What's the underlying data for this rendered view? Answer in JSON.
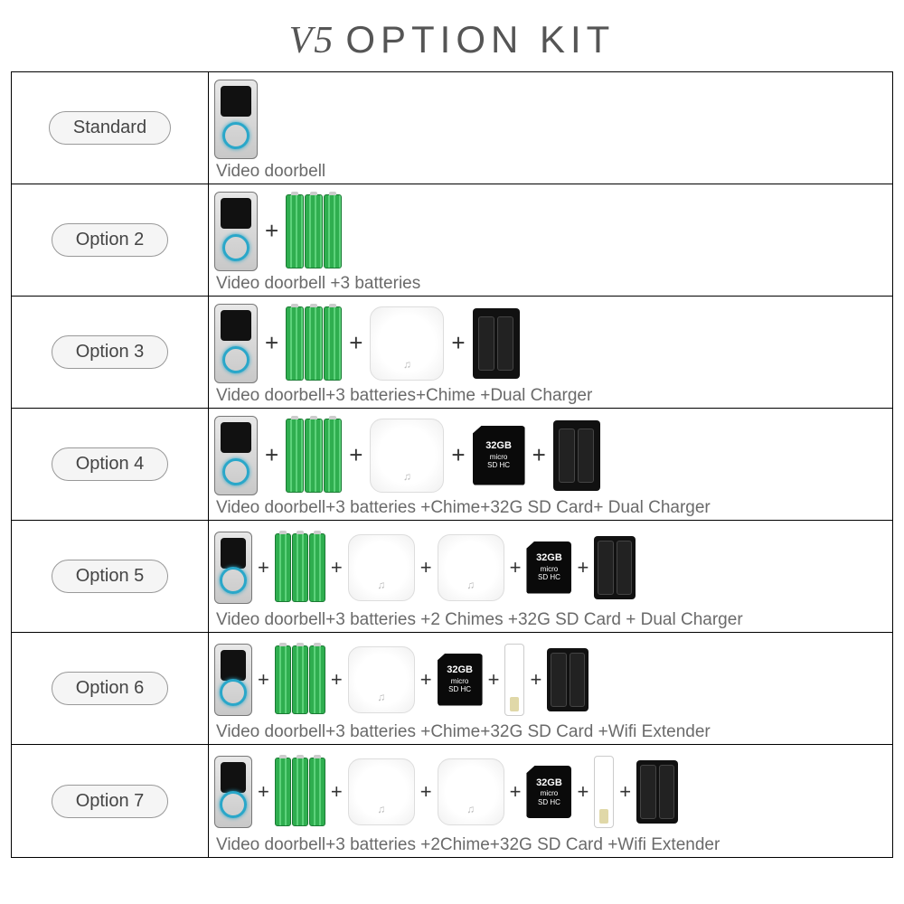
{
  "title": {
    "prefix": "V5",
    "main": "OPTION  KIT"
  },
  "colors": {
    "border": "#000000",
    "text_gray": "#6a6a6a",
    "pill_bg": "#f5f5f5",
    "pill_border": "#999999",
    "battery_green": "#2fae4f",
    "doorbell_ring": "#2aa7c9",
    "sd_black": "#0a0a0a",
    "charger_black": "#111111"
  },
  "rows": [
    {
      "label": "Standard",
      "items": [
        "doorbell"
      ],
      "caption": "Video doorbell"
    },
    {
      "label": "Option 2",
      "items": [
        "doorbell",
        "plus",
        "batteries"
      ],
      "caption": "Video doorbell +3 batteries"
    },
    {
      "label": "Option 3",
      "items": [
        "doorbell",
        "plus",
        "batteries",
        "plus",
        "chime",
        "plus",
        "charger"
      ],
      "caption": "Video doorbell+3 batteries+Chime +Dual Charger"
    },
    {
      "label": "Option 4",
      "items": [
        "doorbell",
        "plus",
        "batteries",
        "plus",
        "chime",
        "plus",
        "sdcard",
        "plus",
        "charger"
      ],
      "caption": "Video doorbell+3 batteries +Chime+32G SD Card+ Dual Charger"
    },
    {
      "label": "Option 5",
      "items": [
        "doorbell",
        "plus",
        "batteries",
        "plus",
        "chime",
        "plus",
        "chime",
        "plus",
        "sdcard",
        "plus",
        "charger"
      ],
      "caption": "Video doorbell+3 batteries +2 Chimes +32G SD Card + Dual Charger",
      "small": true
    },
    {
      "label": "Option 6",
      "items": [
        "doorbell",
        "plus",
        "batteries",
        "plus",
        "chime",
        "plus",
        "sdcard",
        "plus",
        "extender",
        "plus",
        "charger"
      ],
      "caption": "Video doorbell+3 batteries +Chime+32G SD Card +Wifi Extender",
      "small": true
    },
    {
      "label": "Option 7",
      "items": [
        "doorbell",
        "plus",
        "batteries",
        "plus",
        "chime",
        "plus",
        "chime",
        "plus",
        "sdcard",
        "plus",
        "extender",
        "plus",
        "charger"
      ],
      "caption": "Video doorbell+3 batteries +2Chime+32G SD Card +Wifi Extender",
      "small": true
    }
  ],
  "sdcard_label": {
    "cap": "32GB",
    "l1": "micro",
    "l2": "SD HC"
  },
  "chime_glyph": "♫"
}
